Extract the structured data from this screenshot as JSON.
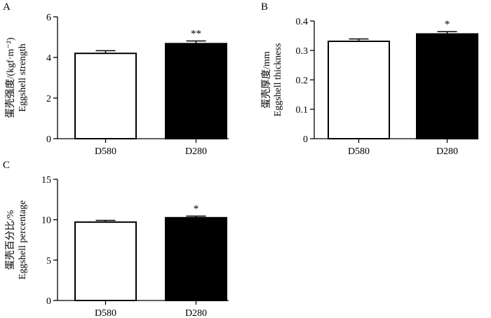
{
  "figure": {
    "panels": [
      "A",
      "B",
      "C"
    ]
  },
  "chart_data": [
    {
      "type": "bar",
      "panel": "A",
      "categories": [
        "D580",
        "D280"
      ],
      "values": [
        4.2,
        4.68
      ],
      "errors": [
        0.13,
        0.13
      ],
      "bar_colors": [
        "#ffffff",
        "#000000"
      ],
      "significance": [
        "",
        "**"
      ],
      "ylabel": "蛋壳强度/(kgf·m⁻²)",
      "ylabel2": "Eggshell strength",
      "ylim": [
        0,
        6
      ],
      "yticks": [
        0,
        2,
        4,
        6
      ],
      "ytick_labels": [
        "0",
        "2",
        "4",
        "6"
      ]
    },
    {
      "type": "bar",
      "panel": "B",
      "categories": [
        "D580",
        "D280"
      ],
      "values": [
        0.331,
        0.356
      ],
      "errors": [
        0.008,
        0.008
      ],
      "bar_colors": [
        "#ffffff",
        "#000000"
      ],
      "significance": [
        "",
        "*"
      ],
      "ylabel": "蛋壳厚度/mm",
      "ylabel2": "Eggshell thickness",
      "ylim": [
        0,
        0.4
      ],
      "yticks": [
        0,
        0.1,
        0.2,
        0.3,
        0.4
      ],
      "ytick_labels": [
        "0",
        "0.1",
        "0.2",
        "0.3",
        "0.4"
      ]
    },
    {
      "type": "bar",
      "panel": "C",
      "categories": [
        "D580",
        "D280"
      ],
      "values": [
        9.7,
        10.25
      ],
      "errors": [
        0.22,
        0.2
      ],
      "bar_colors": [
        "#ffffff",
        "#000000"
      ],
      "significance": [
        "",
        "*"
      ],
      "ylabel": "蛋壳百分比/%",
      "ylabel2": "Eggshell percentage",
      "ylim": [
        0,
        15
      ],
      "yticks": [
        0,
        5,
        10,
        15
      ],
      "ytick_labels": [
        "0",
        "5",
        "10",
        "15"
      ]
    }
  ]
}
